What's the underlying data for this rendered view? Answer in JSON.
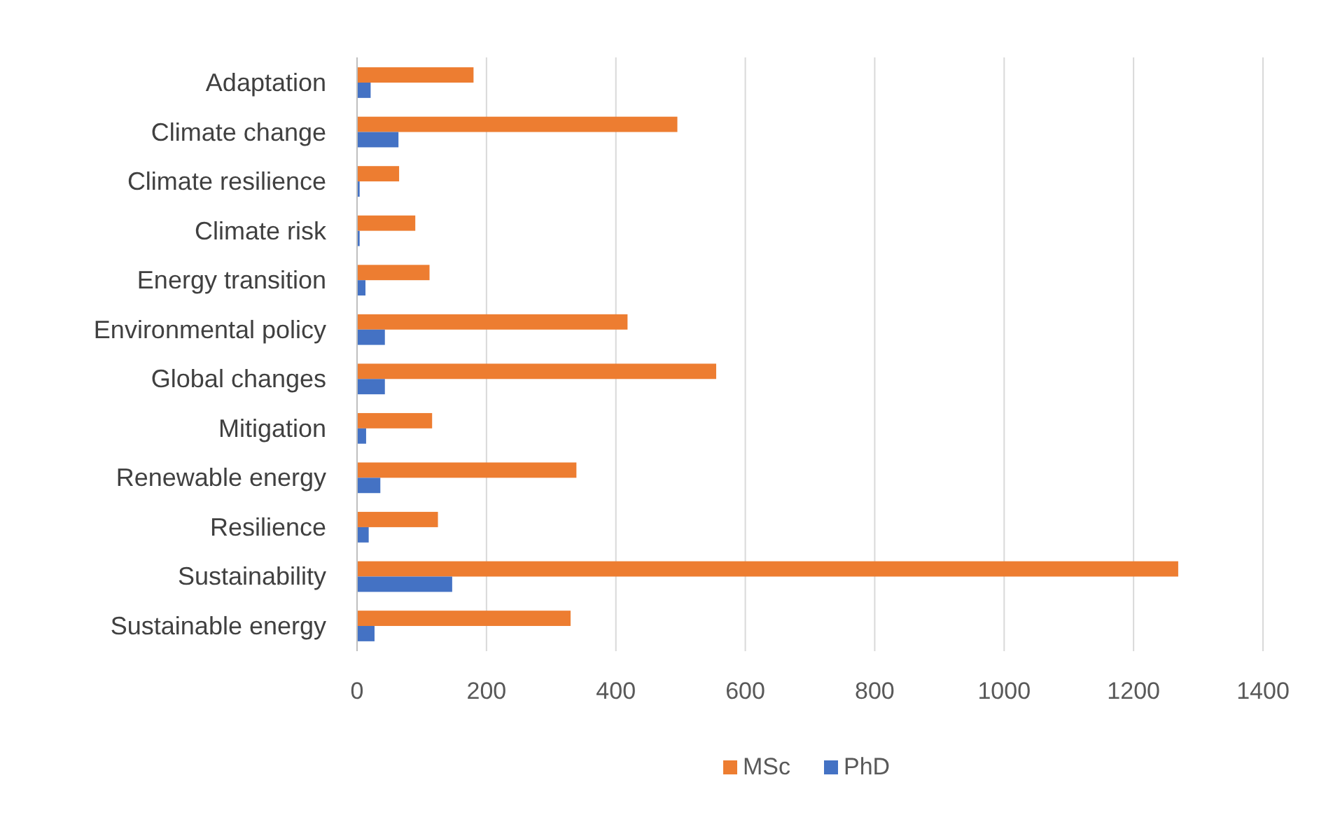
{
  "chart_data": {
    "type": "bar",
    "orientation": "horizontal",
    "categories": [
      "Adaptation",
      "Climate change",
      "Climate resilience",
      "Climate risk",
      "Energy transition",
      "Environmental policy",
      "Global changes",
      "Mitigation",
      "Renewable energy",
      "Resilience",
      "Sustainability",
      "Sustainable energy"
    ],
    "series": [
      {
        "name": "MSc",
        "color": "#ed7d31",
        "values": [
          180,
          495,
          65,
          90,
          112,
          418,
          555,
          116,
          339,
          125,
          1269,
          330
        ]
      },
      {
        "name": "PhD",
        "color": "#4472c4",
        "values": [
          21,
          64,
          4,
          4,
          13,
          43,
          43,
          14,
          36,
          18,
          147,
          27
        ]
      }
    ],
    "xlim": [
      0,
      1400
    ],
    "xticks": [
      0,
      200,
      400,
      600,
      800,
      1000,
      1200,
      1400
    ],
    "grid": "x",
    "legend": "bottom"
  }
}
